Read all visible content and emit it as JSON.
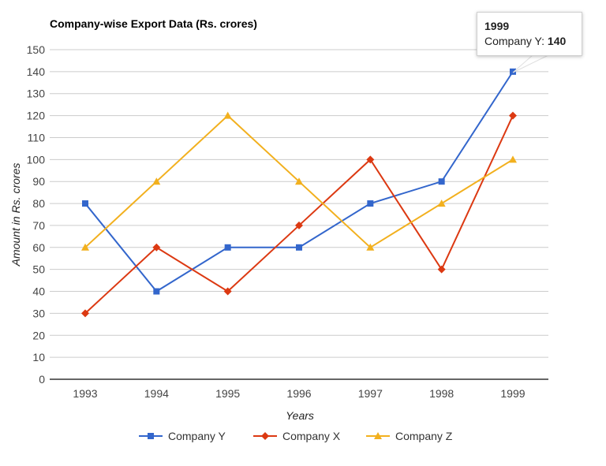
{
  "chart_data": {
    "type": "line",
    "title": "Company-wise Export Data (Rs. crores)",
    "xlabel": "Years",
    "ylabel": "Amount in Rs. crores",
    "categories": [
      "1993",
      "1994",
      "1995",
      "1996",
      "1997",
      "1998",
      "1999"
    ],
    "series": [
      {
        "name": "Company Y",
        "color": "#3366cc",
        "marker": "square",
        "values": [
          80,
          40,
          60,
          60,
          80,
          90,
          140
        ]
      },
      {
        "name": "Company X",
        "color": "#dc3912",
        "marker": "diamond",
        "values": [
          30,
          60,
          40,
          70,
          100,
          50,
          120
        ]
      },
      {
        "name": "Company Z",
        "color": "#f2b01e",
        "marker": "triangle",
        "values": [
          60,
          90,
          120,
          90,
          60,
          80,
          100
        ]
      }
    ],
    "ylim": [
      0,
      150
    ],
    "yticks": [
      0,
      10,
      20,
      30,
      40,
      50,
      60,
      70,
      80,
      90,
      100,
      110,
      120,
      130,
      140,
      150
    ],
    "grid": true,
    "legend_position": "bottom"
  },
  "tooltip": {
    "title": "1999",
    "series_label": "Company Y:",
    "value": "140"
  }
}
